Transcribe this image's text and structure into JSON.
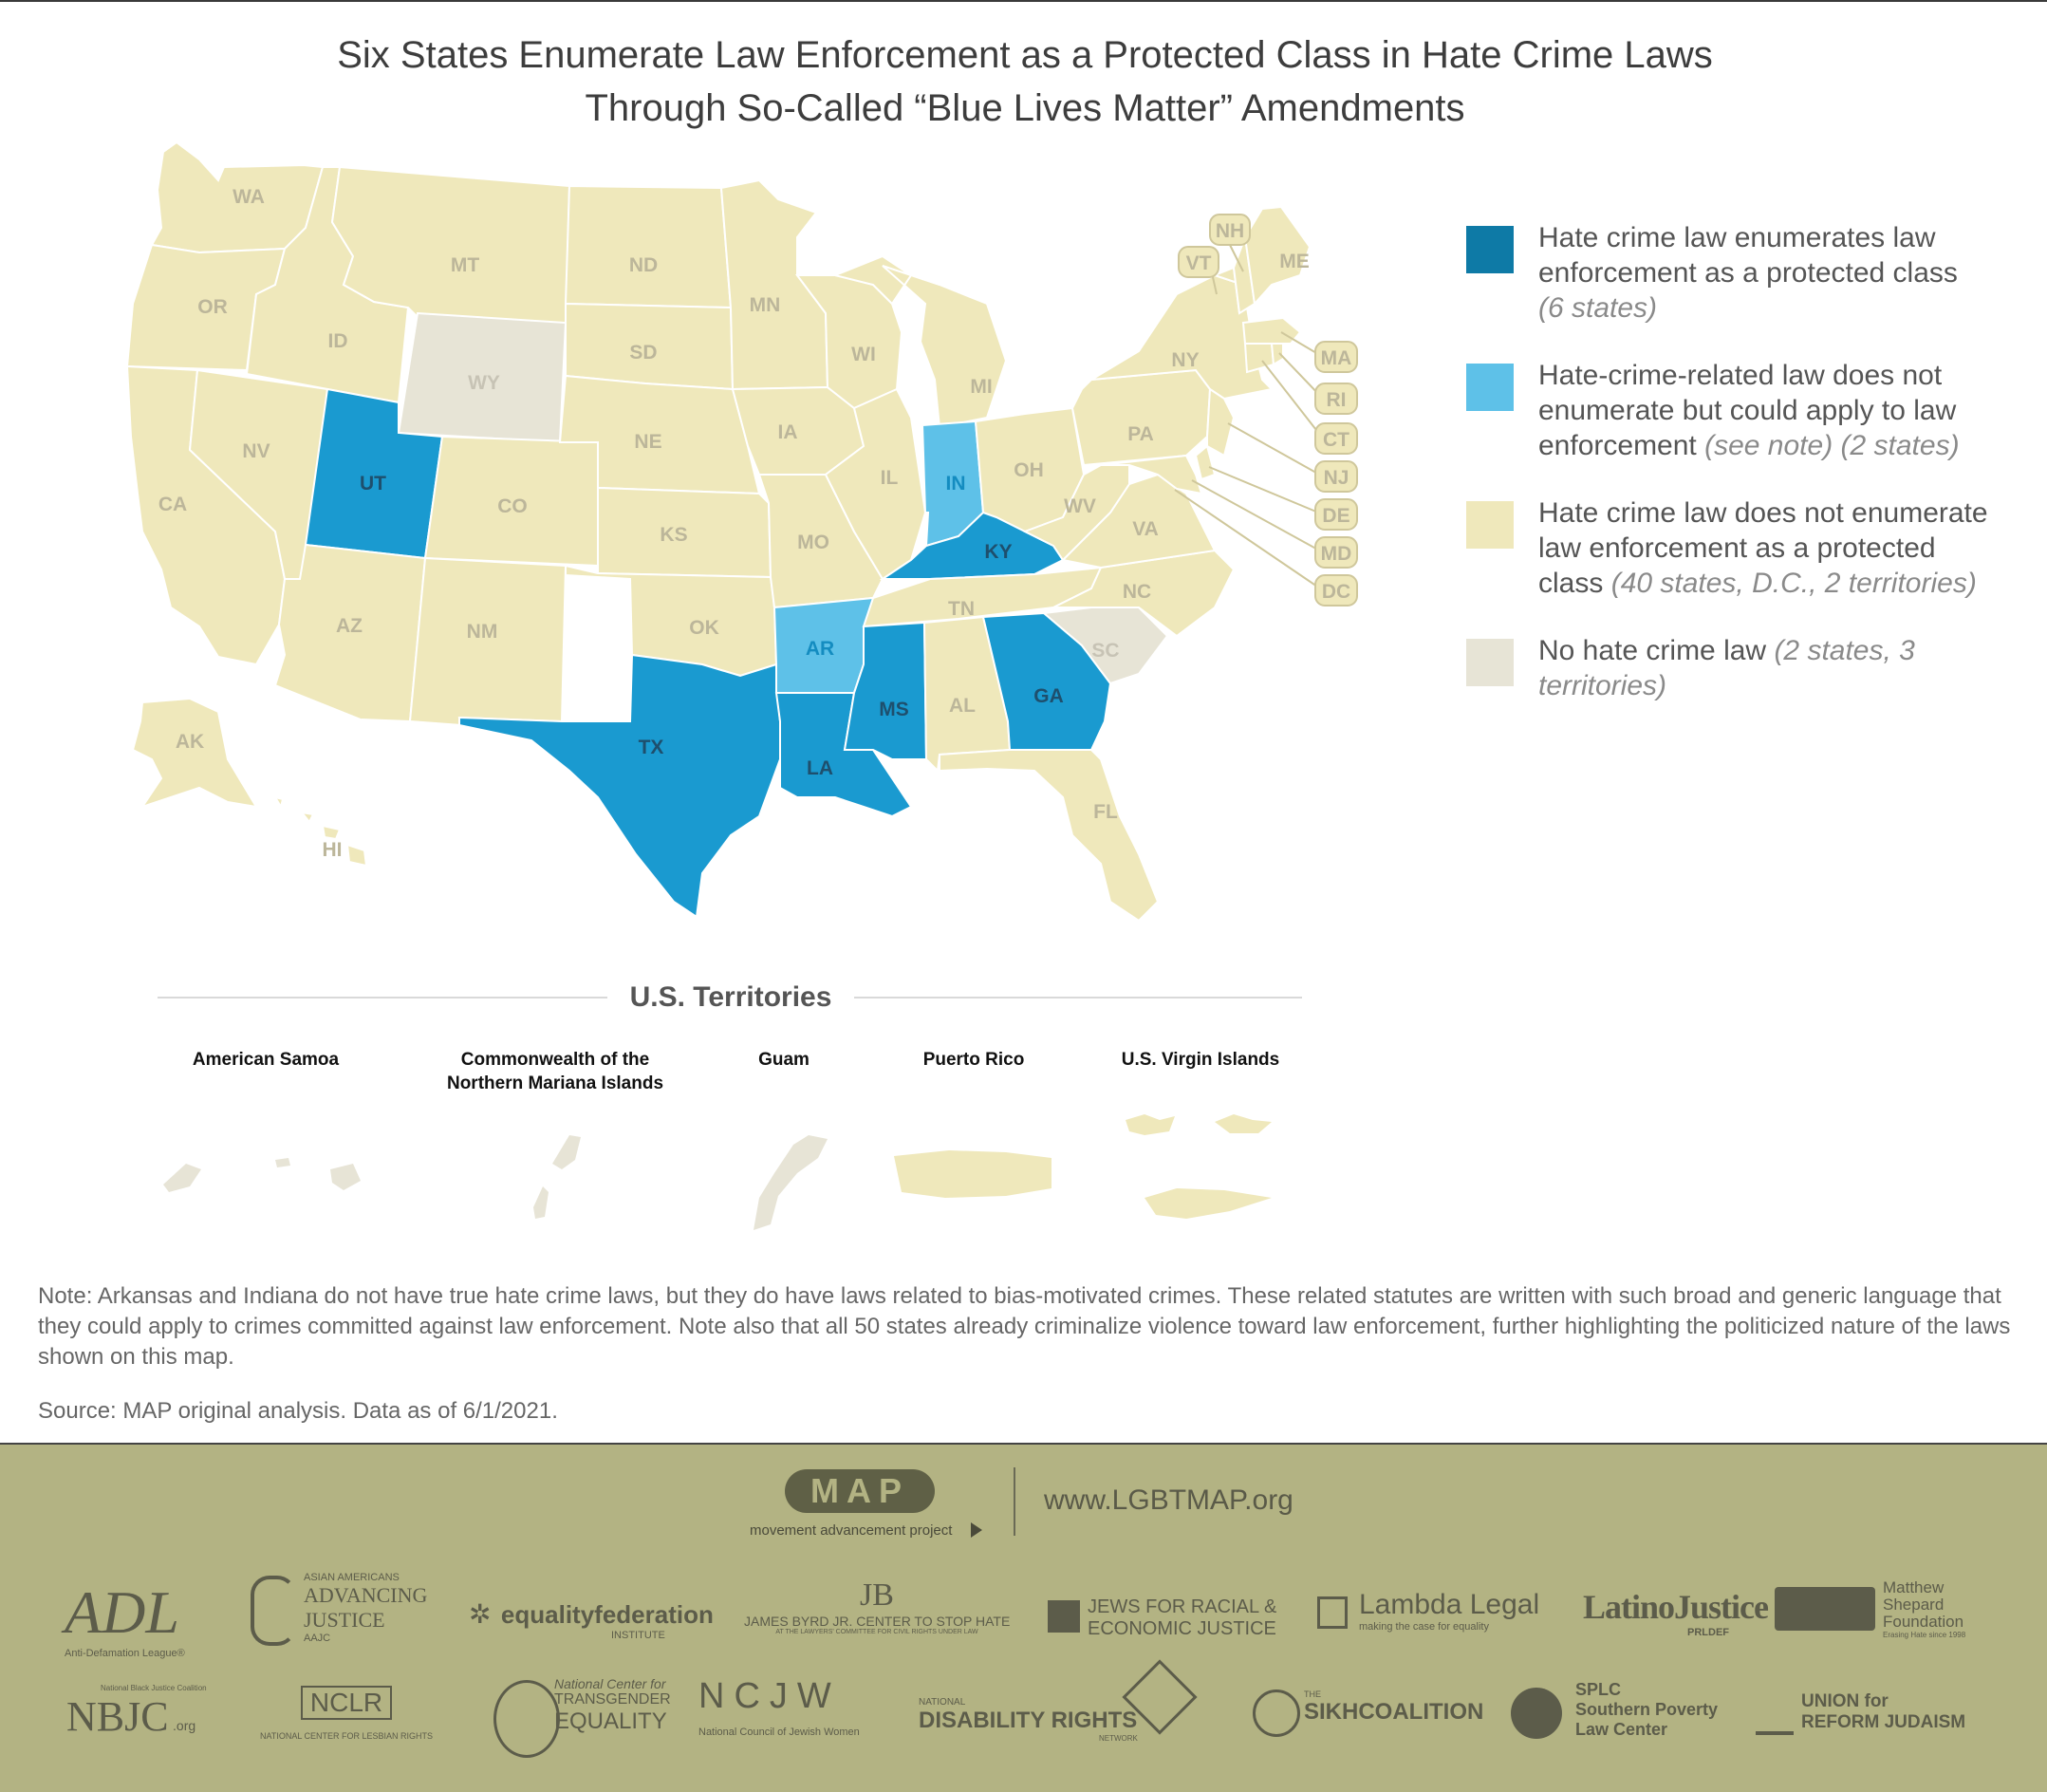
{
  "title": {
    "line1": "Six States Enumerate Law Enforcement as a Protected Class in Hate Crime Laws",
    "line2": "Through So-Called “Blue Lives Matter” Amendments"
  },
  "states": {
    "WA": "WA",
    "OR": "OR",
    "CA": "CA",
    "NV": "NV",
    "ID": "ID",
    "MT": "MT",
    "WY": "WY",
    "UT": "UT",
    "AZ": "AZ",
    "CO": "CO",
    "NM": "NM",
    "ND": "ND",
    "SD": "SD",
    "NE": "NE",
    "KS": "KS",
    "OK": "OK",
    "TX": "TX",
    "MN": "MN",
    "IA": "IA",
    "MO": "MO",
    "AR": "AR",
    "LA": "LA",
    "WI": "WI",
    "IL": "IL",
    "MI": "MI",
    "IN": "IN",
    "OH": "OH",
    "KY": "KY",
    "TN": "TN",
    "MS": "MS",
    "AL": "AL",
    "GA": "GA",
    "FL": "FL",
    "SC": "SC",
    "NC": "NC",
    "VA": "VA",
    "WV": "WV",
    "PA": "PA",
    "NY": "NY",
    "ME": "ME",
    "AK": "AK",
    "HI": "HI",
    "VT": "VT",
    "NH": "NH",
    "MA": "MA",
    "RI": "RI",
    "CT": "CT",
    "NJ": "NJ",
    "DE": "DE",
    "MD": "MD",
    "DC": "DC"
  },
  "state_status": {
    "enumerates": [
      "UT",
      "TX",
      "LA",
      "MS",
      "KY",
      "GA"
    ],
    "could_apply": [
      "AR",
      "IN"
    ],
    "no_law": [
      "WY",
      "SC"
    ]
  },
  "colors": {
    "enumerates": "#1a9ad0",
    "enumerates_legend": "#0e7aa6",
    "could_apply": "#5ec1e8",
    "does_not_enumerate": "#efe8bb",
    "no_law": "#e7e4d6",
    "footer": "#b3b383"
  },
  "legend": {
    "item1": {
      "text": "Hate crime law enumerates law enforcement as a protected class",
      "count": "(6 states)"
    },
    "item2": {
      "text": "Hate-crime-related law does not enumerate but could apply to law enforcement",
      "count": "(see note) (2 states)"
    },
    "item3": {
      "text": "Hate crime law does not enumerate law enforcement as a protected class",
      "count": "(40 states, D.C., 2 territories)"
    },
    "item4": {
      "text": "No hate crime law",
      "count": "(2 states, 3 territories)"
    }
  },
  "territories": {
    "heading": "U.S. Territories",
    "american_samoa": "American Samoa",
    "cnmi_line1": "Commonwealth of the",
    "cnmi_line2": "Northern Mariana Islands",
    "guam": "Guam",
    "puerto_rico": "Puerto Rico",
    "usvi": "U.S. Virgin Islands"
  },
  "territory_status": {
    "no_law": [
      "American Samoa",
      "Commonwealth of the Northern Mariana Islands",
      "Guam"
    ],
    "does_not_enumerate": [
      "Puerto Rico",
      "U.S. Virgin Islands"
    ]
  },
  "note": "Note: Arkansas and Indiana do not have true hate crime laws, but they do have laws related to bias-motivated crimes. These related statutes are written with such broad and generic language that they could apply to crimes committed against law enforcement. Note also that all 50 states already criminalize violence toward law enforcement, further highlighting the politicized nature of the laws shown on this map.",
  "source": "Source: MAP original analysis. Data as of 6/1/2021.",
  "footer": {
    "map_logo": "MAP",
    "map_tagline": "movement advancement project",
    "website": "www.LGBTMAP.org",
    "orgs": {
      "adl": "ADL",
      "adl_sub": "Anti-Defamation League®",
      "aaj_top": "ASIAN AMERICANS",
      "aaj_main": "ADVANCING",
      "aaj_main2": "JUSTICE",
      "aaj_sub": "AAJC",
      "eqf": "equalityfederation",
      "eqf_sub": "INSTITUTE",
      "jbyrd": "JAMES BYRD JR. CENTER TO STOP HATE",
      "jbyrd_sub": "AT THE LAWYERS' COMMITTEE FOR CIVIL RIGHTS UNDER LAW",
      "jfrej1": "JEWS FOR RACIAL &",
      "jfrej2": "ECONOMIC JUSTICE",
      "lambda": "Lambda Legal",
      "lambda_sub": "making the case for equality",
      "latino": "LatinoJustice",
      "latino_sub": "PRLDEF",
      "msf1": "Matthew",
      "msf2": "Shepard",
      "msf3": "Foundation",
      "msf_sub": "Erasing Hate since 1998",
      "nbjc": "NBJC",
      "nbjc_top": "National Black Justice Coalition",
      "nbjc_org": ".org",
      "nclr": "NCLR",
      "nclr_sub": "NATIONAL CENTER FOR LESBIAN RIGHTS",
      "ncte_top": "National Center for",
      "ncte_mid": "TRANSGENDER",
      "ncte_main": "EQUALITY",
      "ncjw": "NCJW",
      "ncjw_sub": "National Council of Jewish Women",
      "ndrn_top": "NATIONAL",
      "ndrn_main": "DISABILITY RIGHTS",
      "ndrn_sub": "NETWORK",
      "sikh_the": "THE",
      "sikh": "SIKHCOALITION",
      "splc": "SPLC",
      "splc2": "Southern Poverty",
      "splc3": "Law Center",
      "urj1": "UNION for",
      "urj2": "REFORM JUDAISM"
    }
  }
}
